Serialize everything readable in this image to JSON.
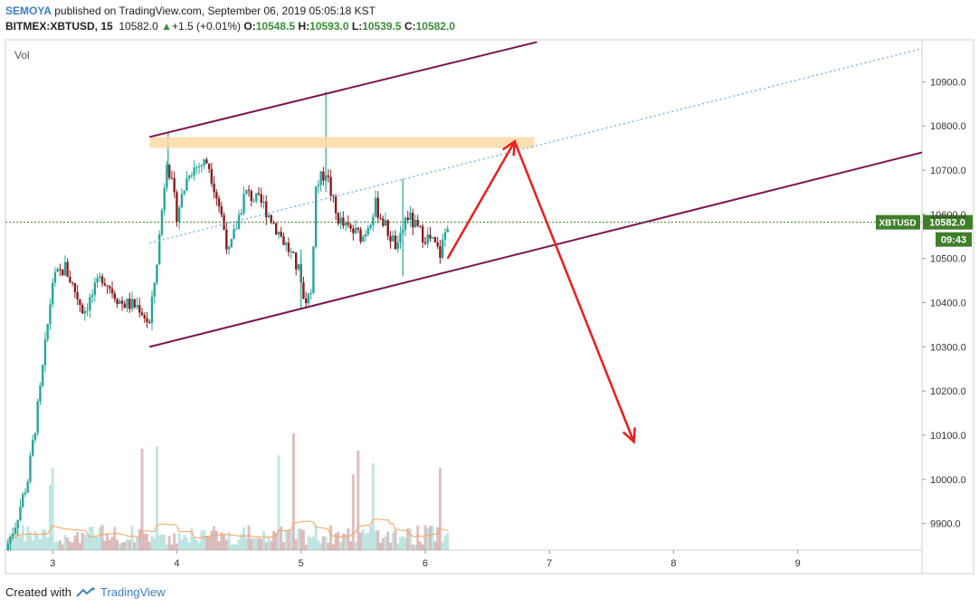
{
  "header": {
    "author": "SEMOYA",
    "published": "published on TradingView.com, September 06, 2019 05:05:18 KST",
    "symbol": "BITMEX:XBTUSD, 15",
    "last": "10582.0",
    "change": "+1.5 (+0.01%)",
    "o_label": "O:",
    "o_value": "10548.5",
    "h_label": "H:",
    "h_value": "10593.0",
    "l_label": "L:",
    "l_value": "10539.5",
    "c_label": "C:",
    "c_value": "10582.0"
  },
  "footer": {
    "created_with": "Created with",
    "brand": "TradingView"
  },
  "colors": {
    "up": "#26a69a",
    "down": "#8a1c1c",
    "channel": "#7b1450",
    "arrow": "#ee1c1c",
    "zone": "#fcd9a6",
    "midline": "#7fb6e6",
    "ma": "#f5a15c",
    "badge": "#3f7f2a"
  },
  "chart_data": {
    "type": "candlestick",
    "vol_label": "Vol",
    "x_ticks": [
      "3",
      "4",
      "5",
      "6",
      "7",
      "8",
      "9"
    ],
    "y_ticks": [
      "10900.0",
      "10800.0",
      "10700.0",
      "10600.0",
      "10500.0",
      "10400.0",
      "10300.0",
      "10200.0",
      "10100.0",
      "10000.0",
      "9900.0"
    ],
    "ylim": [
      9840,
      10995
    ],
    "xlim": [
      2.62,
      10.0
    ],
    "price_badge": {
      "symbol": "XBTUSD",
      "value": "10582.0",
      "timer": "09:43"
    },
    "path": [
      [
        2.62,
        9840
      ],
      [
        2.7,
        9900
      ],
      [
        2.8,
        10000
      ],
      [
        2.9,
        10200
      ],
      [
        3.0,
        10450
      ],
      [
        3.1,
        10480
      ],
      [
        3.25,
        10380
      ],
      [
        3.4,
        10460
      ],
      [
        3.55,
        10400
      ],
      [
        3.7,
        10390
      ],
      [
        3.78,
        10350
      ],
      [
        3.85,
        10520
      ],
      [
        3.92,
        10730
      ],
      [
        4.0,
        10600
      ],
      [
        4.1,
        10700
      ],
      [
        4.25,
        10720
      ],
      [
        4.35,
        10610
      ],
      [
        4.42,
        10510
      ],
      [
        4.55,
        10650
      ],
      [
        4.7,
        10620
      ],
      [
        4.8,
        10570
      ],
      [
        4.9,
        10520
      ],
      [
        5.0,
        10460
      ],
      [
        4.98,
        10400
      ],
      [
        5.08,
        10420
      ],
      [
        5.12,
        10660
      ],
      [
        5.2,
        10700
      ],
      [
        5.28,
        10600
      ],
      [
        5.35,
        10570
      ],
      [
        5.5,
        10550
      ],
      [
        5.6,
        10620
      ],
      [
        5.7,
        10560
      ],
      [
        5.78,
        10520
      ],
      [
        5.85,
        10600
      ],
      [
        5.95,
        10560
      ],
      [
        6.05,
        10540
      ],
      [
        6.12,
        10510
      ],
      [
        6.18,
        10582
      ]
    ],
    "spikes": [
      {
        "x": 5.2,
        "high": 10878,
        "low": 10650
      },
      {
        "x": 3.93,
        "high": 10785,
        "low": 10690
      },
      {
        "x": 5.82,
        "high": 10680,
        "low": 10460
      },
      {
        "x": 5.0,
        "high": 10520,
        "low": 10385
      }
    ],
    "channel_upper": [
      [
        3.78,
        10775
      ],
      [
        6.9,
        10990
      ]
    ],
    "channel_lower": [
      [
        3.78,
        10300
      ],
      [
        10.0,
        10740
      ]
    ],
    "mid_line": [
      [
        3.78,
        10535
      ],
      [
        10.0,
        10975
      ]
    ],
    "resistance_zone": {
      "x": [
        3.78,
        6.88
      ],
      "y": [
        10750,
        10775
      ]
    },
    "arrows": [
      {
        "from": [
          6.18,
          10500
        ],
        "to": [
          6.72,
          10765
        ]
      },
      {
        "from": [
          6.72,
          10765
        ],
        "to": [
          7.68,
          10085
        ]
      }
    ]
  }
}
